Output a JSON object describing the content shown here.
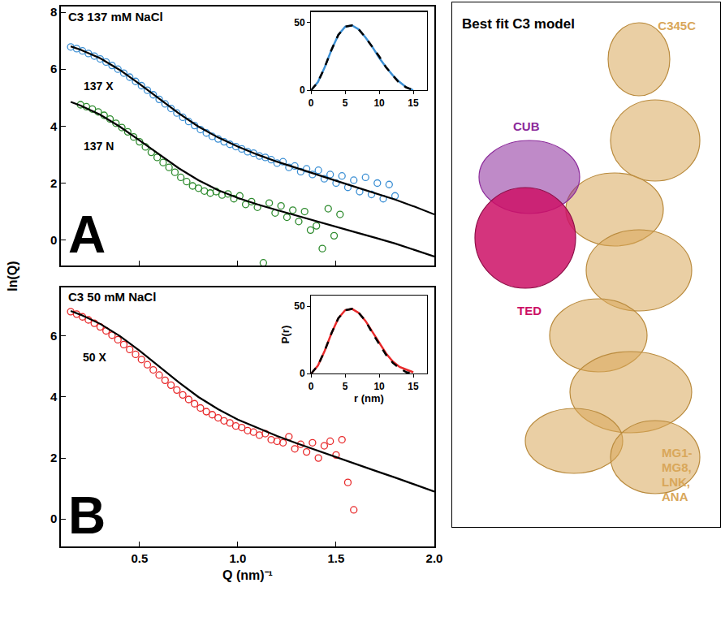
{
  "chart_data": [
    {
      "type": "scatter",
      "title": "C3 137 mM NaCl",
      "panel_label": "A",
      "y_label": "ln(Q)",
      "xlim": [
        0.1,
        2.0
      ],
      "ylim": [
        -0.9,
        8.2
      ],
      "xticks": [
        0.5,
        {
          "value": 1,
          "label": "1.0"
        },
        1.5,
        {
          "value": 2,
          "label": "2.0"
        }
      ],
      "yticks": [
        0,
        2,
        4,
        6,
        8
      ],
      "tick_labels": "y",
      "grid": false,
      "annotations": [
        {
          "text": "137 X",
          "x": 0.29,
          "y": 5.4
        },
        {
          "text": "137 N",
          "x": 0.29,
          "y": 3.3
        }
      ],
      "series": [
        {
          "type": "scatter",
          "marker": "open circle",
          "color": "#3b8fd4",
          "x": [
            0.15,
            0.18,
            0.21,
            0.24,
            0.27,
            0.3,
            0.33,
            0.36,
            0.39,
            0.42,
            0.45,
            0.48,
            0.51,
            0.54,
            0.57,
            0.6,
            0.63,
            0.66,
            0.69,
            0.72,
            0.75,
            0.78,
            0.81,
            0.84,
            0.87,
            0.9,
            0.93,
            0.96,
            0.99,
            1.02,
            1.05,
            1.08,
            1.11,
            1.14,
            1.17,
            1.2,
            1.23,
            1.26,
            1.29,
            1.32,
            1.35,
            1.38,
            1.41,
            1.44,
            1.47,
            1.5,
            1.53,
            1.56,
            1.59,
            1.62,
            1.65,
            1.68,
            1.71,
            1.74,
            1.77,
            1.8
          ],
          "values": [
            6.78,
            6.72,
            6.64,
            6.55,
            6.46,
            6.36,
            6.25,
            6.13,
            6.0,
            5.86,
            5.72,
            5.57,
            5.42,
            5.26,
            5.1,
            4.94,
            4.78,
            4.62,
            4.46,
            4.31,
            4.16,
            4.02,
            3.88,
            3.76,
            3.64,
            3.55,
            3.45,
            3.36,
            3.28,
            3.2,
            3.1,
            3.05,
            2.95,
            2.9,
            2.82,
            2.7,
            2.75,
            2.55,
            2.6,
            2.4,
            2.5,
            2.3,
            2.45,
            2.15,
            2.3,
            2.0,
            2.25,
            1.85,
            2.1,
            1.7,
            2.2,
            1.6,
            2.0,
            1.45,
            1.95,
            1.55
          ]
        },
        {
          "type": "line",
          "line_style": "solid",
          "color": "#000000",
          "x": [
            0.15,
            0.2,
            0.3,
            0.4,
            0.5,
            0.6,
            0.7,
            0.8,
            0.9,
            1.0,
            1.1,
            1.2,
            1.3,
            1.4,
            1.5,
            1.6,
            1.7,
            1.8,
            1.9,
            2.0
          ],
          "values": [
            6.8,
            6.68,
            6.38,
            5.97,
            5.48,
            4.96,
            4.45,
            3.98,
            3.6,
            3.28,
            3.0,
            2.75,
            2.52,
            2.3,
            2.08,
            1.86,
            1.64,
            1.42,
            1.17,
            0.9
          ]
        },
        {
          "type": "scatter",
          "marker": "open circle",
          "color": "#2e8b2e",
          "x": [
            0.2,
            0.23,
            0.26,
            0.29,
            0.32,
            0.35,
            0.38,
            0.41,
            0.44,
            0.47,
            0.5,
            0.53,
            0.56,
            0.59,
            0.62,
            0.65,
            0.68,
            0.71,
            0.74,
            0.77,
            0.8,
            0.83,
            0.86,
            0.89,
            0.92,
            0.95,
            0.98,
            1.01,
            1.04,
            1.07,
            1.1,
            1.13,
            1.16,
            1.19,
            1.22,
            1.25,
            1.28,
            1.31,
            1.34,
            1.37,
            1.4,
            1.43,
            1.46,
            1.49,
            1.52
          ],
          "values": [
            4.75,
            4.68,
            4.6,
            4.5,
            4.38,
            4.25,
            4.1,
            3.95,
            3.8,
            3.62,
            3.45,
            3.27,
            3.08,
            2.9,
            2.72,
            2.55,
            2.38,
            2.2,
            2.05,
            1.9,
            1.82,
            1.72,
            1.65,
            1.7,
            1.58,
            1.62,
            1.45,
            1.55,
            1.25,
            1.35,
            1.15,
            -0.8,
            1.3,
            0.95,
            1.2,
            0.8,
            1.05,
            0.65,
            1.0,
            0.35,
            0.5,
            -0.3,
            1.1,
            0.15,
            0.9
          ]
        },
        {
          "type": "line",
          "line_style": "solid",
          "color": "#000000",
          "x": [
            0.15,
            0.2,
            0.3,
            0.4,
            0.5,
            0.6,
            0.7,
            0.8,
            0.9,
            1.0,
            1.1,
            1.2,
            1.3,
            1.4,
            1.5,
            1.6,
            1.7,
            1.8,
            1.9,
            2.0
          ],
          "values": [
            4.85,
            4.72,
            4.4,
            3.98,
            3.5,
            3.0,
            2.52,
            2.1,
            1.75,
            1.48,
            1.25,
            1.05,
            0.85,
            0.65,
            0.45,
            0.27,
            0.08,
            -0.12,
            -0.35,
            -0.58
          ]
        }
      ]
    },
    {
      "type": "line",
      "xlim": [
        0,
        17
      ],
      "ylim": [
        0,
        58
      ],
      "xticks": [
        0,
        5,
        10,
        15
      ],
      "yticks": [
        0,
        50
      ],
      "grid": false,
      "series": [
        {
          "type": "line",
          "line_style": "solid",
          "color": "#3b8fd4",
          "x": [
            0,
            1,
            2,
            3,
            4,
            5,
            6,
            7,
            8,
            9,
            10,
            11,
            12,
            13,
            14,
            15
          ],
          "values": [
            0,
            6,
            17,
            30,
            41,
            47,
            48,
            45,
            39,
            32,
            24,
            17,
            11,
            6,
            2,
            0
          ]
        },
        {
          "type": "line",
          "line_style": "dashed",
          "color": "#000000",
          "x": [
            0,
            1,
            2,
            3,
            4,
            5,
            6,
            7,
            8,
            9,
            10,
            11,
            12,
            13,
            14,
            15
          ],
          "values": [
            0,
            6,
            17,
            30,
            41,
            47,
            48,
            45,
            39,
            32,
            25,
            17,
            11,
            5,
            2,
            0
          ]
        }
      ]
    },
    {
      "type": "scatter",
      "title": "C3 50 mM NaCl",
      "panel_label": "B",
      "x_label": "Q (nm)⁻¹",
      "xlim": [
        0.1,
        2.0
      ],
      "ylim": [
        -0.9,
        7.6
      ],
      "xticks": [
        0.5,
        {
          "value": 1,
          "label": "1.0"
        },
        1.5,
        {
          "value": 2,
          "label": "2.0"
        }
      ],
      "yticks": [
        0,
        2,
        4,
        6
      ],
      "grid": false,
      "annotations": [
        {
          "text": "50 X",
          "x": 0.27,
          "y": 5.3
        }
      ],
      "series": [
        {
          "type": "scatter",
          "marker": "open circle",
          "color": "#e8292a",
          "x": [
            0.15,
            0.18,
            0.21,
            0.24,
            0.27,
            0.3,
            0.33,
            0.36,
            0.39,
            0.42,
            0.45,
            0.48,
            0.51,
            0.54,
            0.57,
            0.6,
            0.63,
            0.66,
            0.69,
            0.72,
            0.75,
            0.78,
            0.81,
            0.84,
            0.87,
            0.9,
            0.93,
            0.96,
            0.99,
            1.02,
            1.05,
            1.08,
            1.11,
            1.14,
            1.17,
            1.2,
            1.23,
            1.26,
            1.29,
            1.32,
            1.35,
            1.38,
            1.41,
            1.44,
            1.47,
            1.5,
            1.53,
            1.56,
            1.59
          ],
          "values": [
            6.8,
            6.72,
            6.63,
            6.53,
            6.42,
            6.3,
            6.17,
            6.03,
            5.88,
            5.72,
            5.56,
            5.4,
            5.23,
            5.06,
            4.89,
            4.72,
            4.55,
            4.39,
            4.23,
            4.07,
            3.92,
            3.78,
            3.64,
            3.52,
            3.42,
            3.32,
            3.22,
            3.15,
            3.05,
            3.0,
            2.9,
            2.85,
            2.75,
            2.8,
            2.6,
            2.55,
            2.5,
            2.7,
            2.3,
            2.45,
            2.2,
            2.5,
            2.0,
            2.4,
            2.55,
            2.1,
            2.6,
            1.2,
            0.3
          ]
        },
        {
          "type": "line",
          "line_style": "solid",
          "color": "#000000",
          "x": [
            0.15,
            0.2,
            0.3,
            0.4,
            0.5,
            0.6,
            0.7,
            0.8,
            0.9,
            1.0,
            1.1,
            1.2,
            1.3,
            1.4,
            1.5,
            1.6,
            1.7,
            1.8,
            1.9,
            2.0
          ],
          "values": [
            6.82,
            6.7,
            6.4,
            6.0,
            5.52,
            5.0,
            4.48,
            4.0,
            3.6,
            3.26,
            2.98,
            2.72,
            2.48,
            2.25,
            2.02,
            1.8,
            1.58,
            1.36,
            1.13,
            0.9
          ]
        }
      ]
    },
    {
      "type": "line",
      "x_label": "r (nm)",
      "y_label": "P(r)",
      "xlim": [
        0,
        17
      ],
      "ylim": [
        0,
        58
      ],
      "xticks": [
        0,
        5,
        10,
        15
      ],
      "yticks": [
        0,
        50
      ],
      "grid": false,
      "series": [
        {
          "type": "line",
          "line_style": "solid",
          "color": "#e8292a",
          "x": [
            0,
            1,
            2,
            3,
            4,
            5,
            6,
            7,
            8,
            9,
            10,
            11,
            12,
            13,
            14,
            15
          ],
          "values": [
            0,
            6,
            17,
            30,
            41,
            47,
            48,
            45,
            39,
            31,
            23,
            15,
            9,
            5,
            3,
            1
          ]
        },
        {
          "type": "line",
          "line_style": "dashed",
          "color": "#000000",
          "x": [
            0,
            1,
            2,
            3,
            4,
            5,
            6,
            7,
            8,
            9,
            10,
            11,
            12,
            13,
            14,
            15
          ],
          "values": [
            0,
            6,
            17,
            30,
            41,
            47,
            48,
            45,
            39,
            30,
            22,
            14,
            8,
            4,
            1,
            0
          ]
        }
      ]
    }
  ],
  "diagram": {
    "title": "Best fit C3 model",
    "labels": [
      {
        "text": "C345C",
        "color": "#d9a75a"
      },
      {
        "text": "CUB",
        "color": "#8b2a9a"
      },
      {
        "text": "TED",
        "color": "#cc1166"
      },
      {
        "lines": [
          "MG1-",
          "MG8,",
          "LNK,",
          "ANA"
        ],
        "color": "#d9a75a"
      }
    ]
  }
}
